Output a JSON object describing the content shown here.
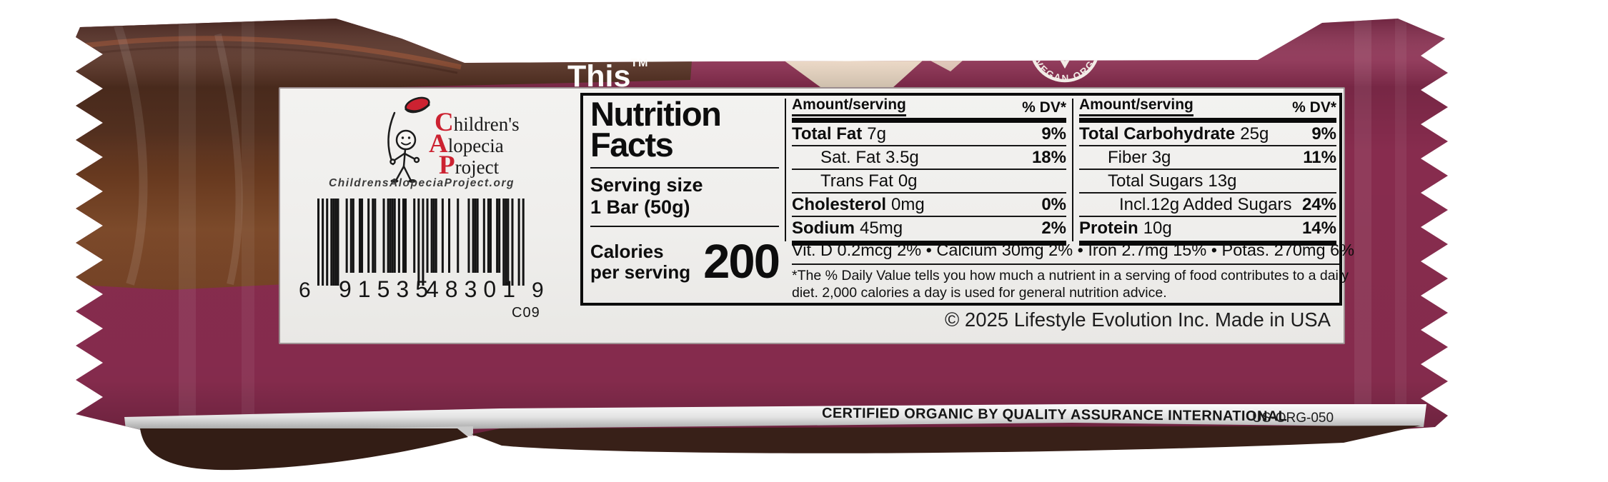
{
  "brand": {
    "trademark_text": "This",
    "tm": "TM"
  },
  "vegan_badge": {
    "text": "VEGAN.ORG"
  },
  "charity": {
    "lines": [
      "Children's",
      "Alopecia",
      "Project"
    ],
    "website": "ChildrensAlopeciaProject.org"
  },
  "barcode": {
    "digit_left": "6",
    "digits_group1": "91535",
    "digits_group2": "48301",
    "digit_right": "9",
    "code": "C09"
  },
  "nutrition": {
    "title_line1": "Nutrition",
    "title_line2": "Facts",
    "serving_label": "Serving size",
    "serving_value": "1 Bar (50g)",
    "calories_label_line1": "Calories",
    "calories_label_line2": "per serving",
    "calories_value": "200",
    "col_header_amount": "Amount/serving",
    "col_header_dv": "% DV*",
    "left_rows": [
      {
        "label": "Total Fat",
        "value": "7g",
        "dv": "9%",
        "bold": true,
        "indent": 0
      },
      {
        "label": "Sat. Fat",
        "value": "3.5g",
        "dv": "18%",
        "bold": false,
        "indent": 1
      },
      {
        "label": "Trans Fat",
        "value": "0g",
        "dv": "",
        "bold": false,
        "indent": 1
      },
      {
        "label": "Cholesterol",
        "value": "0mg",
        "dv": "0%",
        "bold": true,
        "indent": 0
      },
      {
        "label": "Sodium",
        "value": "45mg",
        "dv": "2%",
        "bold": true,
        "indent": 0
      }
    ],
    "right_rows": [
      {
        "label": "Total Carbohydrate",
        "value": "25g",
        "dv": "9%",
        "bold": true,
        "indent": 0
      },
      {
        "label": "Fiber",
        "value": "3g",
        "dv": "11%",
        "bold": false,
        "indent": 1
      },
      {
        "label": "Total Sugars",
        "value": "13g",
        "dv": "",
        "bold": false,
        "indent": 1
      },
      {
        "label": "Incl.12g Added Sugars",
        "value": "",
        "dv": "24%",
        "bold": false,
        "indent": 2
      },
      {
        "label": "Protein",
        "value": "10g",
        "dv": "14%",
        "bold": true,
        "indent": 0
      }
    ],
    "micronutrients": "Vit. D 0.2mcg 2% • Calcium 30mg 2% • Iron 2.7mg 15% • Potas. 270mg 6%",
    "footnote_line1": "*The % Daily Value tells you how much a nutrient in a serving of food contributes to a daily",
    "footnote_line2": "diet. 2,000 calories a day is used for general nutrition advice."
  },
  "legal": {
    "copyright": "© 2025 Lifestyle Evolution Inc. Made in USA"
  },
  "certification": {
    "text": "CERTIFIED ORGANIC BY QUALITY ASSURANCE INTERNATIONAL",
    "code": "US-ORG-050"
  },
  "colors": {
    "wrapper_maroon": "#872c4e",
    "wrapper_dark": "#5f1c36",
    "chocolate_dark": "#4e2d20",
    "chocolate_milk": "#7b4a2b",
    "cream_swirl": "#ead9c4",
    "label_bg": "#f0efed",
    "accent_red": "#cc2231",
    "silver": "#d9d9d9",
    "shadow_brown": "#331d15"
  }
}
